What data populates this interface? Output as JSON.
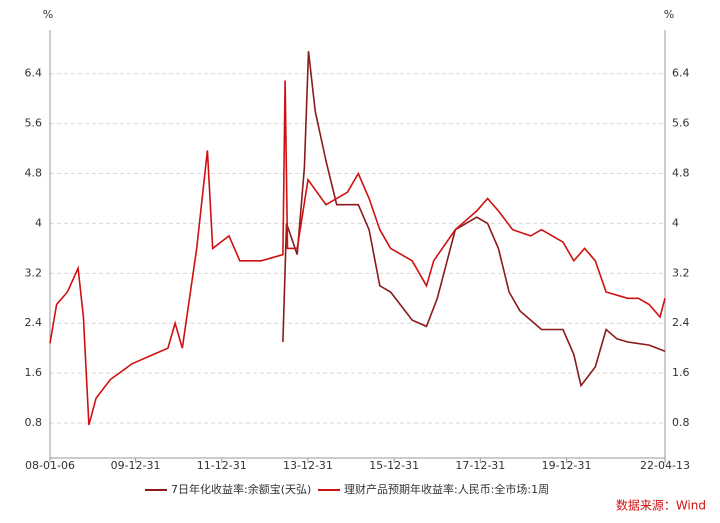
{
  "chart_data": {
    "type": "line",
    "y_unit": "%",
    "source": "数据来源：Wind",
    "xlim": [
      "08-01-06",
      "22-04-13"
    ],
    "xticks": [
      "08-01-06",
      "09-12-31",
      "11-12-31",
      "13-12-31",
      "15-12-31",
      "17-12-31",
      "19-12-31",
      "22-04-13"
    ],
    "ylim": [
      0.24,
      7.1
    ],
    "yticks": [
      0.8,
      1.6,
      2.4,
      3.2,
      4,
      4.8,
      5.6,
      6.4
    ],
    "grid": true,
    "legend": "bottom",
    "series": [
      {
        "name": "7日年化收益率:余额宝(天弘)",
        "color": "#8b1a1a",
        "x": [
          "13-06-01",
          "13-07-01",
          "13-10-01",
          "13-12-01",
          "14-01-05",
          "14-03-01",
          "14-06-01",
          "14-09-01",
          "14-12-01",
          "15-03-01",
          "15-06-01",
          "15-09-01",
          "15-12-01",
          "16-06-01",
          "16-10-01",
          "17-01-01",
          "17-06-01",
          "17-12-01",
          "18-03-01",
          "18-06-01",
          "18-09-01",
          "18-12-01",
          "19-06-01",
          "19-12-01",
          "20-03-01",
          "20-05-01",
          "20-09-01",
          "20-12-01",
          "21-03-01",
          "21-06-01",
          "21-12-01",
          "22-04-13"
        ],
        "values": [
          2.1,
          4.0,
          3.5,
          4.9,
          6.76,
          5.8,
          5.0,
          4.3,
          4.3,
          4.3,
          3.9,
          3.0,
          2.9,
          2.45,
          2.35,
          2.8,
          3.9,
          4.1,
          4.0,
          3.6,
          2.9,
          2.6,
          2.3,
          2.3,
          1.9,
          1.4,
          1.7,
          2.3,
          2.15,
          2.1,
          2.05,
          1.95
        ]
      },
      {
        "name": "理财产品预期年收益率:人民币:全市场:1周",
        "color": "#d01010",
        "x": [
          "08-01-06",
          "08-03-01",
          "08-06-01",
          "08-09-01",
          "08-10-15",
          "08-12-01",
          "09-02-01",
          "09-06-01",
          "09-12-01",
          "10-06-01",
          "10-10-01",
          "10-12-01",
          "11-02-01",
          "11-06-01",
          "11-09-01",
          "11-10-15",
          "12-03-01",
          "12-06-01",
          "12-12-01",
          "13-06-01",
          "13-06-20",
          "13-07-10",
          "13-10-01",
          "14-01-01",
          "14-06-01",
          "14-12-01",
          "15-03-01",
          "15-06-01",
          "15-09-01",
          "15-12-01",
          "16-06-01",
          "16-10-01",
          "16-12-01",
          "17-06-01",
          "17-10-01",
          "17-12-01",
          "18-03-01",
          "18-06-01",
          "18-10-01",
          "19-03-01",
          "19-06-01",
          "19-12-01",
          "20-03-01",
          "20-06-01",
          "20-09-01",
          "20-12-01",
          "21-06-01",
          "21-09-01",
          "21-12-01",
          "22-03-01",
          "22-04-13"
        ],
        "values": [
          2.08,
          2.7,
          2.9,
          3.28,
          2.5,
          0.77,
          1.2,
          1.5,
          1.75,
          1.9,
          2.0,
          2.4,
          2.0,
          3.6,
          5.17,
          3.6,
          3.8,
          3.4,
          3.4,
          3.5,
          6.29,
          3.6,
          3.6,
          4.7,
          4.3,
          4.5,
          4.8,
          4.4,
          3.9,
          3.6,
          3.4,
          3.0,
          3.4,
          3.9,
          4.1,
          4.2,
          4.4,
          4.2,
          3.9,
          3.8,
          3.9,
          3.7,
          3.4,
          3.6,
          3.4,
          2.9,
          2.8,
          2.8,
          2.7,
          2.5,
          2.8
        ]
      }
    ]
  }
}
